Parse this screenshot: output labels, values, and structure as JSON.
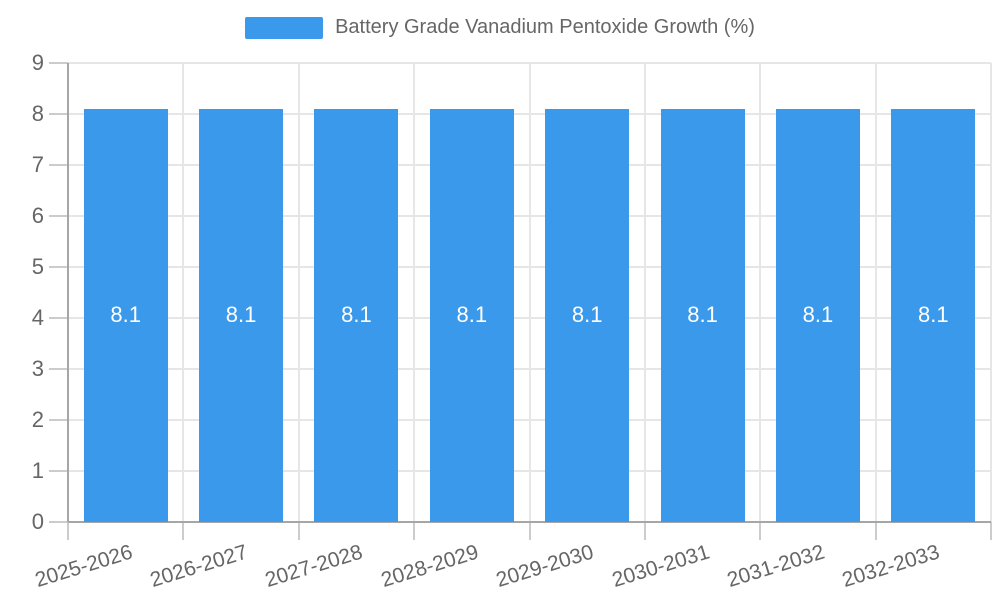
{
  "chart_data": {
    "type": "bar",
    "title": "Battery Grade Vanadium Pentoxide Growth (%)",
    "categories": [
      "2025-2026",
      "2026-2027",
      "2027-2028",
      "2028-2029",
      "2029-2030",
      "2030-2031",
      "2031-2032",
      "2032-2033"
    ],
    "series": [
      {
        "name": "Battery Grade Vanadium Pentoxide Growth (%)",
        "values": [
          8.1,
          8.1,
          8.1,
          8.1,
          8.1,
          8.1,
          8.1,
          8.1
        ]
      }
    ],
    "xlabel": "",
    "ylabel": "",
    "ylim": [
      0,
      9
    ],
    "y_ticks": [
      0,
      1,
      2,
      3,
      4,
      5,
      6,
      7,
      8,
      9
    ],
    "grid": true,
    "legend_position": "top",
    "bar_value_labels": [
      "8.1",
      "8.1",
      "8.1",
      "8.1",
      "8.1",
      "8.1",
      "8.1",
      "8.1"
    ]
  },
  "colors": {
    "bar": "#3b99ec",
    "bar_label_text": "#ffffff",
    "axis_text": "#666666",
    "legend_text": "#666666",
    "gridline": "#e6e6e6",
    "tick_mark": "#cccccc",
    "axis_line": "#a6a6a6",
    "background": "#ffffff"
  }
}
